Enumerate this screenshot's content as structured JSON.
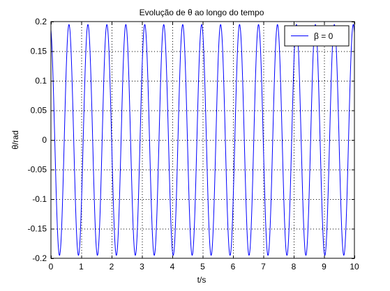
{
  "chart_data": {
    "type": "line",
    "title": "Evolução de θ ao longo do tempo",
    "xlabel": "t/s",
    "ylabel": "θ/rad",
    "xlim": [
      0,
      10
    ],
    "ylim": [
      -0.2,
      0.2
    ],
    "xticks": [
      0,
      1,
      2,
      3,
      4,
      5,
      6,
      7,
      8,
      9,
      10
    ],
    "xtick_labels": [
      "0",
      "1",
      "2",
      "3",
      "4",
      "5",
      "6",
      "7",
      "8",
      "9",
      "10"
    ],
    "yticks": [
      0.2,
      0.15,
      0.1,
      0.05,
      0,
      -0.05,
      -0.1,
      -0.15,
      -0.2
    ],
    "ytick_labels": [
      "0.2",
      "0.15",
      "0.1",
      "0.05",
      "0",
      "-0.05",
      "-0.1",
      "-0.15",
      "-0.2"
    ],
    "grid": true,
    "legend": {
      "position": "top-right",
      "entries": [
        "β = 0"
      ]
    },
    "series": [
      {
        "name": "β = 0",
        "color": "#0000ff",
        "function": "theta(t) = 0.2*cos(2*pi*t/0.6245 + 0.3)",
        "amplitude": 0.195,
        "period": 0.6245,
        "phase": 0.3,
        "x_start": 0,
        "x_end": 10
      }
    ]
  }
}
